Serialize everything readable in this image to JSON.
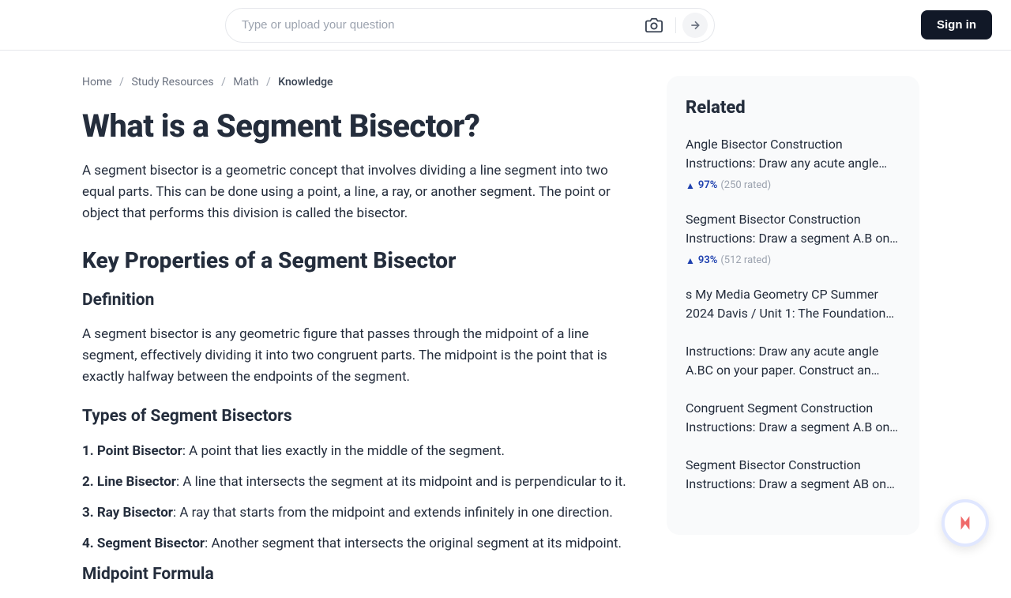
{
  "header": {
    "search_placeholder": "Type or upload your question",
    "signin_label": "Sign in"
  },
  "breadcrumb": {
    "items": [
      "Home",
      "Study Resources",
      "Math"
    ],
    "current": "Knowledge"
  },
  "page": {
    "title": "What is a Segment Bisector?",
    "intro": "A segment bisector is a geometric concept that involves dividing a line segment into two equal parts. This can be done using a point, a line, a ray, or another segment. The point or object that performs this division is called the bisector.",
    "h2": "Key Properties of a Segment Bisector",
    "definition_h3": "Definition",
    "definition_text": "A segment bisector is any geometric figure that passes through the midpoint of a line segment, effectively dividing it into two congruent parts. The midpoint is the point that is exactly halfway between the endpoints of the segment.",
    "types_h3": "Types of Segment Bisectors",
    "types": [
      {
        "num": "1.",
        "name": "Point Bisector",
        "desc": ": A point that lies exactly in the middle of the segment."
      },
      {
        "num": "2.",
        "name": "Line Bisector",
        "desc": ": A line that intersects the segment at its midpoint and is perpendicular to it."
      },
      {
        "num": "3.",
        "name": "Ray Bisector",
        "desc": ": A ray that starts from the midpoint and extends infinitely in one direction."
      },
      {
        "num": "4.",
        "name": "Segment Bisector",
        "desc": ": Another segment that intersects the original segment at its midpoint."
      }
    ],
    "midpoint_h3": "Midpoint Formula"
  },
  "related": {
    "heading": "Related",
    "items": [
      {
        "title": "Angle Bisector Construction Instructions: Draw any acute angle…",
        "pct": "97%",
        "count": "(250 rated)"
      },
      {
        "title": "Segment Bisector Construction Instructions: Draw a segment A.B on…",
        "pct": "93%",
        "count": "(512 rated)"
      },
      {
        "title": "s My Media Geometry CP Summer 2024 Davis / Unit 1: The Foundation…",
        "pct": "",
        "count": ""
      },
      {
        "title": "Instructions: Draw any acute angle A.BC on your paper. Construct an…",
        "pct": "",
        "count": ""
      },
      {
        "title": "Congruent Segment Construction Instructions: Draw a segment A.B on…",
        "pct": "",
        "count": ""
      },
      {
        "title": "Segment Bisector Construction Instructions: Draw a segment AB on…",
        "pct": "",
        "count": ""
      }
    ]
  },
  "colors": {
    "text": "#242d3c",
    "muted": "#6b7280",
    "border": "#e5e7eb",
    "sidebar_bg": "#f9fafb",
    "accent": "#1e40af",
    "float_ring": "#e0e7ff"
  }
}
